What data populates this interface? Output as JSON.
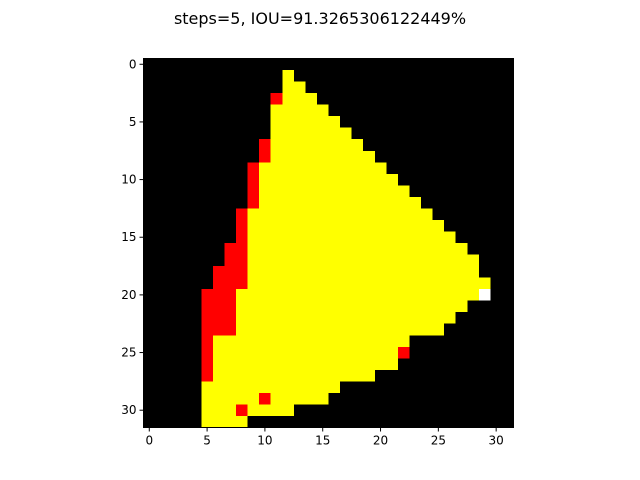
{
  "chart_data": {
    "type": "heatmap",
    "title": "steps=5, IOU=91.3265306122449%",
    "xlabel": "",
    "ylabel": "",
    "grid": false,
    "xlim": [
      -0.5,
      31.5
    ],
    "ylim": [
      31.5,
      -0.5
    ],
    "x_ticks": [
      0,
      5,
      10,
      15,
      20,
      25,
      30
    ],
    "y_ticks": [
      0,
      5,
      10,
      15,
      20,
      25,
      30
    ],
    "color_map": {
      "0": "#000000",
      "1": "#ffff00",
      "2": "#ff0000",
      "3": "#ffffff"
    },
    "rows": [
      "00000000000000000000000000000000",
      "00000000000010000000000000000000",
      "00000000000011000000000000000000",
      "00000000000211100000000000000000",
      "00000000000111110000000000000000",
      "00000000000111111000000000000000",
      "00000000000111111100000000000000",
      "00000000002111111110000000000000",
      "00000000002111111111000000000000",
      "00000000021111111111100000000000",
      "00000000021111111111110000000000",
      "00000000021111111111111000000000",
      "00000000021111111111111100000000",
      "00000000211111111111111110000000",
      "00000000211111111111111111000000",
      "00000000211111111111111111100000",
      "00000002211111111111111111110000",
      "00000002211111111111111111111000",
      "00000022211111111111111111111000",
      "00000022211111111111111111111100",
      "00000222111111111111111111111300",
      "00000222111111111111111111110000",
      "00000222111111111111111111100000",
      "00000222111111111111111111000000",
      "00000211111111111111111000000000",
      "00000211111111111111112000000000",
      "00000211111111111111110000000000",
      "00000211111111111111000000000000",
      "00000111111111111000000000000000",
      "00000111112111110000000000000000",
      "00000111211110000000000000000000",
      "00000111100000000000000000000000"
    ]
  }
}
